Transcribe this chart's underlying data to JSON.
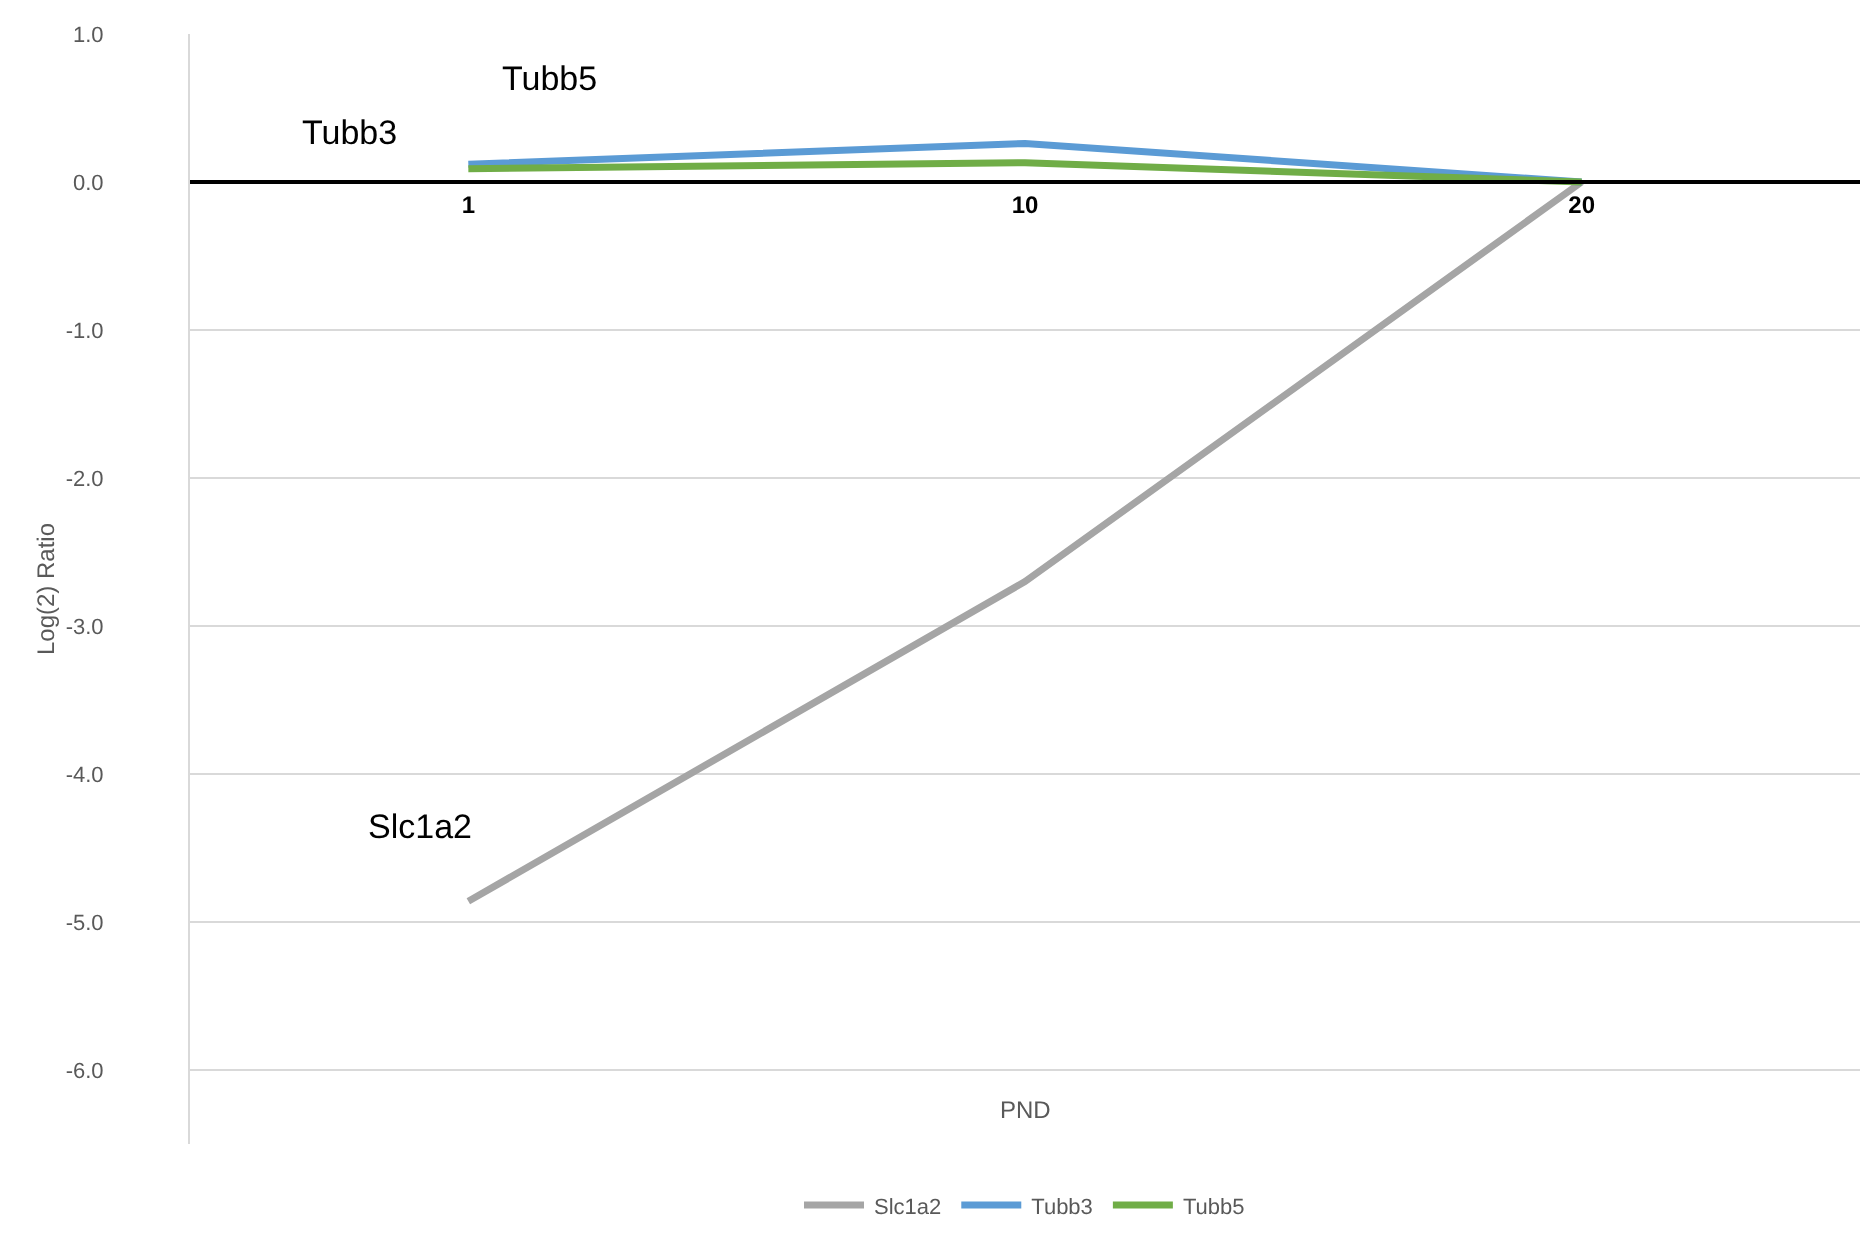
{
  "chart_data": {
    "type": "line",
    "xlabel": "PND",
    "ylabel": "Log(2) Ratio",
    "categories": [
      "1",
      "10",
      "20"
    ],
    "series": [
      {
        "name": "Slc1a2",
        "color": "#a5a5a5",
        "values": [
          -4.86,
          -2.7,
          0
        ]
      },
      {
        "name": "Tubb3",
        "color": "#5b9bd5",
        "values": [
          0.12,
          0.26,
          0
        ]
      },
      {
        "name": "Tubb5",
        "color": "#70ad47",
        "values": [
          0.09,
          0.13,
          0
        ]
      }
    ],
    "ylim": [
      -6.5,
      1.0
    ],
    "yticks": [
      {
        "value": -6,
        "label": "-6.0"
      },
      {
        "value": -5,
        "label": "-5.0"
      },
      {
        "value": -4,
        "label": "-4.0"
      },
      {
        "value": -3,
        "label": "-3.0"
      },
      {
        "value": -2,
        "label": "-2.0"
      },
      {
        "value": -1,
        "label": "-1.0"
      },
      {
        "value": 0,
        "label": "0.0"
      },
      {
        "value": 1,
        "label": "1.0"
      }
    ],
    "annotations": [
      "Tubb3",
      "Tubb5",
      "Slc1a2"
    ],
    "grid": "y",
    "legend": "bottom",
    "marker": "none",
    "line_style": "solid"
  }
}
